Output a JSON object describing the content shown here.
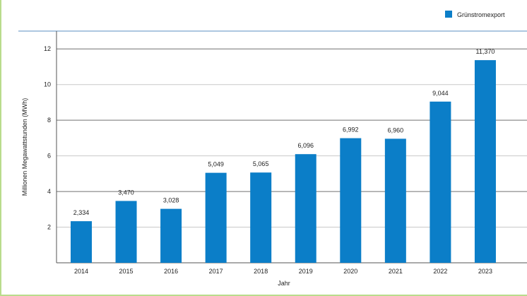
{
  "chart_data": {
    "type": "bar",
    "categories": [
      "2014",
      "2015",
      "2016",
      "2017",
      "2018",
      "2019",
      "2020",
      "2021",
      "2022",
      "2023"
    ],
    "series": [
      {
        "name": "Grünstromexport",
        "values": [
          2.334,
          3.47,
          3.028,
          5.049,
          5.065,
          6.096,
          6.992,
          6.96,
          9.044,
          11.37
        ],
        "labels": [
          "2,334",
          "3,470",
          "3,028",
          "5,049",
          "5,065",
          "6,096",
          "6,992",
          "6,960",
          "9,044",
          "11,370"
        ],
        "color": "#0b7ec8"
      }
    ],
    "title": "",
    "xlabel": "Jahr",
    "ylabel": "Millionen Megawattstunden (MWh)",
    "ylim": [
      0,
      13
    ],
    "yticks": [
      2,
      4,
      6,
      8,
      10,
      12
    ],
    "grid": true,
    "legend": "top-right"
  }
}
